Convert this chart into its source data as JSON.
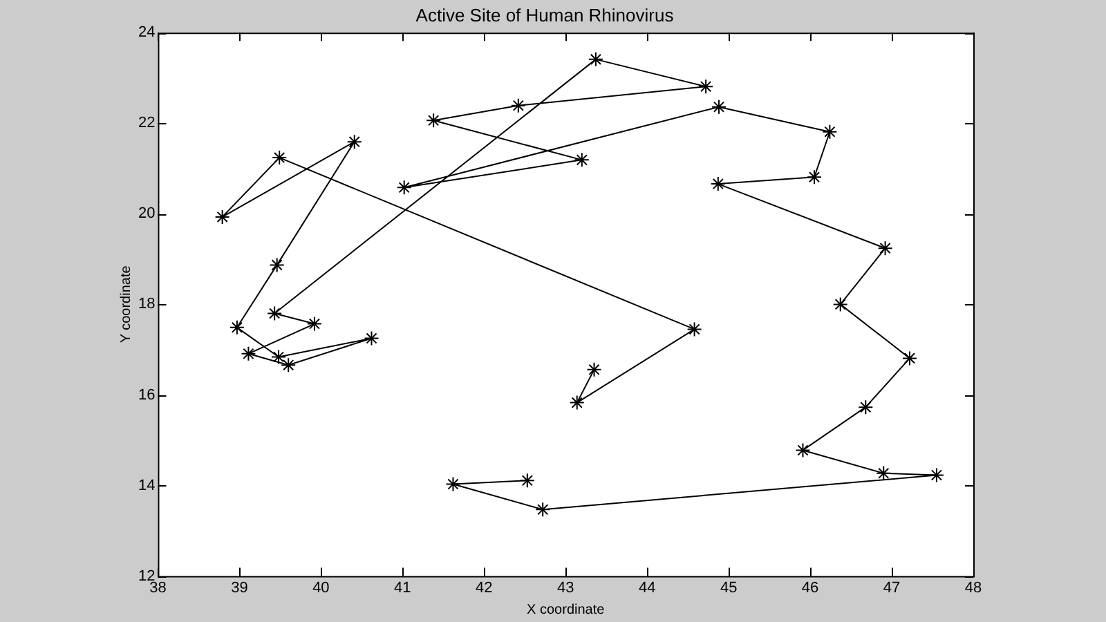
{
  "chart_data": {
    "type": "line",
    "title": "Active Site of Human Rhinovirus",
    "xlabel": "X coordinate",
    "ylabel": "Y coordinate",
    "xlim": [
      38,
      48
    ],
    "xticks": [
      38,
      39,
      40,
      41,
      42,
      43,
      44,
      45,
      46,
      47,
      48
    ],
    "ylim": [
      12,
      24
    ],
    "yticks": [
      12,
      14,
      16,
      18,
      20,
      22,
      24
    ],
    "grid": false,
    "legend": false,
    "marker": "cross",
    "line_style": "solid",
    "series": [
      {
        "color": "#000000",
        "x": [
          43.35,
          43.14,
          44.58,
          39.49,
          38.79,
          40.41,
          39.46,
          38.97,
          39.48,
          40.62,
          39.6,
          39.11,
          39.92,
          39.43,
          43.37,
          44.72,
          42.42,
          41.38,
          43.2,
          41.02,
          44.88,
          46.24,
          46.05,
          44.87,
          46.92,
          46.37,
          47.22,
          46.68,
          45.91,
          46.9,
          47.55,
          42.72,
          41.62,
          42.53
        ],
        "values": [
          16.56,
          15.83,
          17.45,
          21.24,
          19.93,
          21.59,
          18.87,
          17.49,
          16.84,
          17.25,
          16.66,
          16.91,
          17.57,
          17.8,
          23.41,
          22.81,
          22.39,
          22.06,
          21.19,
          20.58,
          22.36,
          21.81,
          20.81,
          20.66,
          19.24,
          18.0,
          16.81,
          15.73,
          14.78,
          14.27,
          14.23,
          13.47,
          14.03,
          14.11
        ]
      }
    ]
  }
}
